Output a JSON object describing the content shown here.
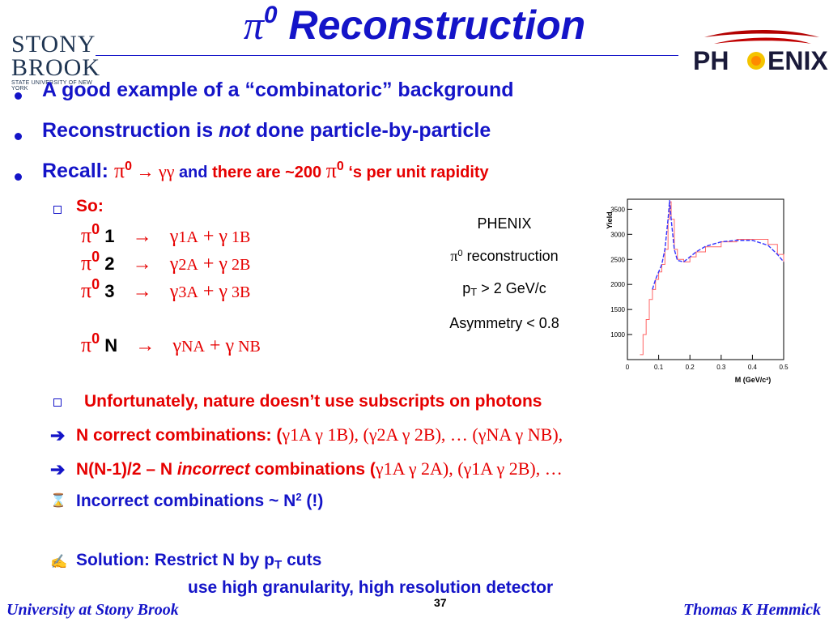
{
  "title": {
    "symbol": "π",
    "sup": "0",
    "text": " Reconstruction"
  },
  "logos": {
    "stony_brook": {
      "line1": "STONY",
      "line2": "BROOK",
      "subtitle": "STATE UNIVERSITY OF NEW YORK"
    },
    "phenix": {
      "left": "PH",
      "right": "ENIX"
    }
  },
  "bullets": {
    "b1": "A good example of a “combinatoric” background",
    "b2_a": "Reconstruction is ",
    "b2_em": "not",
    "b2_b": " done particle-by-particle",
    "b3_a": "Recall: ",
    "b3_pi": "π",
    "b3_sup": "0",
    "b3_arrow": " → γγ ",
    "b3_and": "and ",
    "b3_red": "there are ~200 ",
    "b3_pi2": "π",
    "b3_sup2": "0",
    "b3_end": " ‘s per unit rapidity"
  },
  "so_label": "So:",
  "decays": [
    {
      "pi": "π",
      "sup": "0",
      "n": " 1",
      "arrow": "→",
      "gA": "γ",
      "subA": "1A",
      "plus": " + ",
      "gB": "γ",
      "subB": " 1B"
    },
    {
      "pi": "π",
      "sup": "0",
      "n": " 2",
      "arrow": "→",
      "gA": "γ",
      "subA": "2A",
      "plus": " + ",
      "gB": "γ",
      "subB": " 2B"
    },
    {
      "pi": "π",
      "sup": "0",
      "n": " 3",
      "arrow": "→",
      "gA": "γ",
      "subA": "3A",
      "plus": " + ",
      "gB": "γ",
      "subB": " 3B"
    },
    {
      "pi": "π",
      "sup": "0",
      "n": " N",
      "arrow": "→",
      "gA": "γ",
      "subA": "NA",
      "plus": " + ",
      "gB": "γ",
      "subB": " NB"
    }
  ],
  "info": {
    "l1": "PHENIX",
    "l2_pi": "π",
    "l2_sup": "0",
    "l2_text": " reconstruction",
    "l3_p": "p",
    "l3_sub": "T",
    "l3_text": " > 2 GeV/c",
    "l4": "Asymmetry < 0.8"
  },
  "chart_data": {
    "type": "line",
    "ylabel": "Yield",
    "xlabel": "M (GeV/c²)",
    "xlim": [
      0,
      0.5
    ],
    "ylim": [
      500,
      3700
    ],
    "x_ticks": [
      "0",
      "0.1",
      "0.2",
      "0.3",
      "0.4",
      "0.5"
    ],
    "y_ticks": [
      "1000",
      "1500",
      "2000",
      "2500",
      "3000",
      "3500"
    ],
    "series": [
      {
        "color": "#ff6666",
        "style": "histogram",
        "x": [
          0.04,
          0.05,
          0.06,
          0.07,
          0.08,
          0.09,
          0.1,
          0.11,
          0.12,
          0.13,
          0.135,
          0.14,
          0.15,
          0.16,
          0.18,
          0.2,
          0.22,
          0.25,
          0.3,
          0.35,
          0.4,
          0.45,
          0.48,
          0.5
        ],
        "y": [
          600,
          1000,
          1300,
          1700,
          1900,
          2100,
          2250,
          2400,
          2700,
          3300,
          3650,
          3300,
          2700,
          2500,
          2450,
          2550,
          2650,
          2750,
          2850,
          2900,
          2900,
          2800,
          2600,
          2450
        ]
      },
      {
        "color": "#3333ff",
        "style": "line",
        "x": [
          0.08,
          0.09,
          0.1,
          0.11,
          0.12,
          0.13,
          0.135,
          0.14,
          0.15,
          0.16,
          0.18,
          0.2,
          0.22,
          0.25,
          0.3,
          0.35,
          0.4,
          0.45,
          0.48,
          0.5
        ],
        "y": [
          1900,
          2100,
          2250,
          2400,
          2700,
          3300,
          3680,
          3300,
          2700,
          2480,
          2450,
          2550,
          2650,
          2760,
          2850,
          2880,
          2880,
          2780,
          2600,
          2450
        ]
      }
    ]
  },
  "lower": {
    "l1": "Unfortunately, nature doesn’t use subscripts on photons",
    "l2_a": "N correct combinations: (",
    "l2_math": "γ1A γ 1B), (γ2A γ 2B), … (γNA γ NB),",
    "l3_a": "N(N-1)/2 – N ",
    "l3_em": "incorrect",
    "l3_b": " combinations (",
    "l3_math": "γ1A γ 2A), (γ1A γ 2B), …",
    "l4_a": "Incorrect combinations ~ N",
    "l4_sup": "2",
    "l4_b": "  (!)",
    "l5_a": "Solution: Restrict N by p",
    "l5_sub": "T",
    "l5_b": " cuts",
    "l6": "use high granularity, high resolution detector"
  },
  "footer": {
    "left": "University at Stony Brook",
    "right": "Thomas K Hemmick",
    "page": "37"
  }
}
